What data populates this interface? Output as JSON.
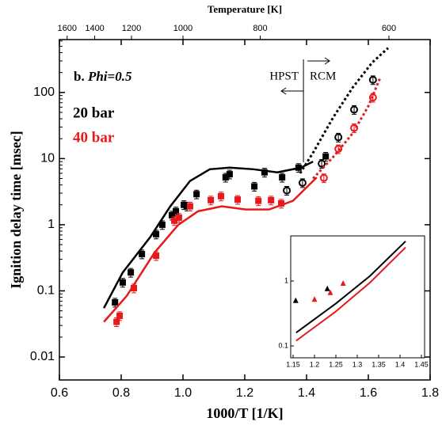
{
  "chart_data": {
    "type": "scatter",
    "xlabel": "1000/T [1/K]",
    "ylabel": "Ignition delay time [msec]",
    "top_xlabel": "Temperature [K]",
    "top_xticks": [
      1600,
      1400,
      1200,
      1000,
      800,
      600
    ],
    "xlim": [
      0.6,
      1.8
    ],
    "xticks": [
      0.6,
      0.8,
      {
        "value": 1,
        "label": "1.0"
      },
      1.2,
      1.4,
      1.6,
      1.8
    ],
    "ylim": [
      0.0045,
      630
    ],
    "yticks": [
      0.01,
      0.1,
      1,
      10,
      100
    ],
    "log_y": true,
    "panel_label": "b.",
    "panel_condition": "Phi=0.5",
    "annotations": [
      "HPST",
      "RCM"
    ],
    "divider_x": 1.39,
    "error_fraction": 0.15,
    "series": [
      {
        "name": "20 bar",
        "color": "#000000",
        "hpst_x": [
          0.78,
          0.805,
          0.831,
          0.867,
          0.913,
          0.933,
          0.964,
          0.977,
          1.003,
          1.013,
          1.044,
          1.138,
          1.151,
          1.231,
          1.264,
          1.321,
          1.374,
          1.462
        ],
        "hpst_values": [
          0.067,
          0.134,
          0.19,
          0.36,
          0.72,
          1.0,
          1.39,
          1.6,
          2.0,
          1.9,
          2.9,
          5.2,
          5.8,
          3.8,
          6.2,
          5.2,
          7.3,
          10.8
        ],
        "rcm_x": [
          1.336,
          1.387,
          1.449,
          1.503,
          1.554,
          1.615
        ],
        "rcm_values": [
          3.3,
          4.3,
          8.4,
          21,
          55,
          155
        ],
        "model_x": [
          0.744,
          0.805,
          0.895,
          0.959,
          1.023,
          1.087,
          1.151,
          1.228,
          1.305,
          1.382,
          1.421
        ],
        "model_values": [
          0.055,
          0.19,
          0.66,
          1.9,
          4.6,
          6.9,
          7.3,
          6.9,
          6.2,
          7.3,
          9.0
        ],
        "model_rcm_x": [
          1.379,
          1.42,
          1.485,
          1.549,
          1.613,
          1.664
        ],
        "model_rcm_values": [
          6,
          12,
          41,
          118,
          285,
          470
        ],
        "inset_x": [
          1.156,
          1.23
        ],
        "inset_values": [
          0.5,
          0.76
        ],
        "inset_model_x": [
          1.157,
          1.25,
          1.33,
          1.413
        ],
        "inset_model_values": [
          0.16,
          0.45,
          1.2,
          4.1
        ]
      },
      {
        "name": "40 bar",
        "color": "#e8191b",
        "hpst_x": [
          0.785,
          0.795,
          0.841,
          0.913,
          0.972,
          0.987,
          1.023,
          1.09,
          1.123,
          1.177,
          1.244,
          1.285,
          1.318
        ],
        "hpst_values": [
          0.034,
          0.042,
          0.11,
          0.34,
          1.15,
          1.28,
          1.9,
          2.35,
          2.7,
          2.4,
          2.3,
          2.35,
          2.1
        ],
        "rcm_x": [
          1.456,
          1.503,
          1.554,
          1.615
        ],
        "rcm_values": [
          5.1,
          14,
          29,
          84
        ],
        "model_x": [
          0.744,
          0.818,
          0.908,
          0.985,
          1.049,
          1.126,
          1.203,
          1.279,
          1.356,
          1.433
        ],
        "model_values": [
          0.034,
          0.084,
          0.38,
          1.0,
          1.6,
          1.9,
          1.7,
          1.7,
          2.3,
          5.2
        ],
        "model_rcm_x": [
          1.421,
          1.485,
          1.549,
          1.6,
          1.638
        ],
        "model_rcm_values": [
          5,
          10.4,
          24,
          62,
          165
        ],
        "inset_x": [
          1.2,
          1.237,
          1.267
        ],
        "inset_values": [
          0.52,
          0.66,
          0.92
        ],
        "inset_model_x": [
          1.157,
          1.25,
          1.33,
          1.413
        ],
        "inset_model_values": [
          0.12,
          0.34,
          0.95,
          3.3
        ]
      }
    ],
    "inset": {
      "xlim": [
        1.1444,
        1.4574
      ],
      "xticks": [
        1.15,
        1.2,
        1.25,
        1.3,
        1.35,
        1.4,
        1.45
      ],
      "ylim": [
        0.0656,
        4.96
      ],
      "yticks": [
        0.1,
        1
      ]
    }
  }
}
